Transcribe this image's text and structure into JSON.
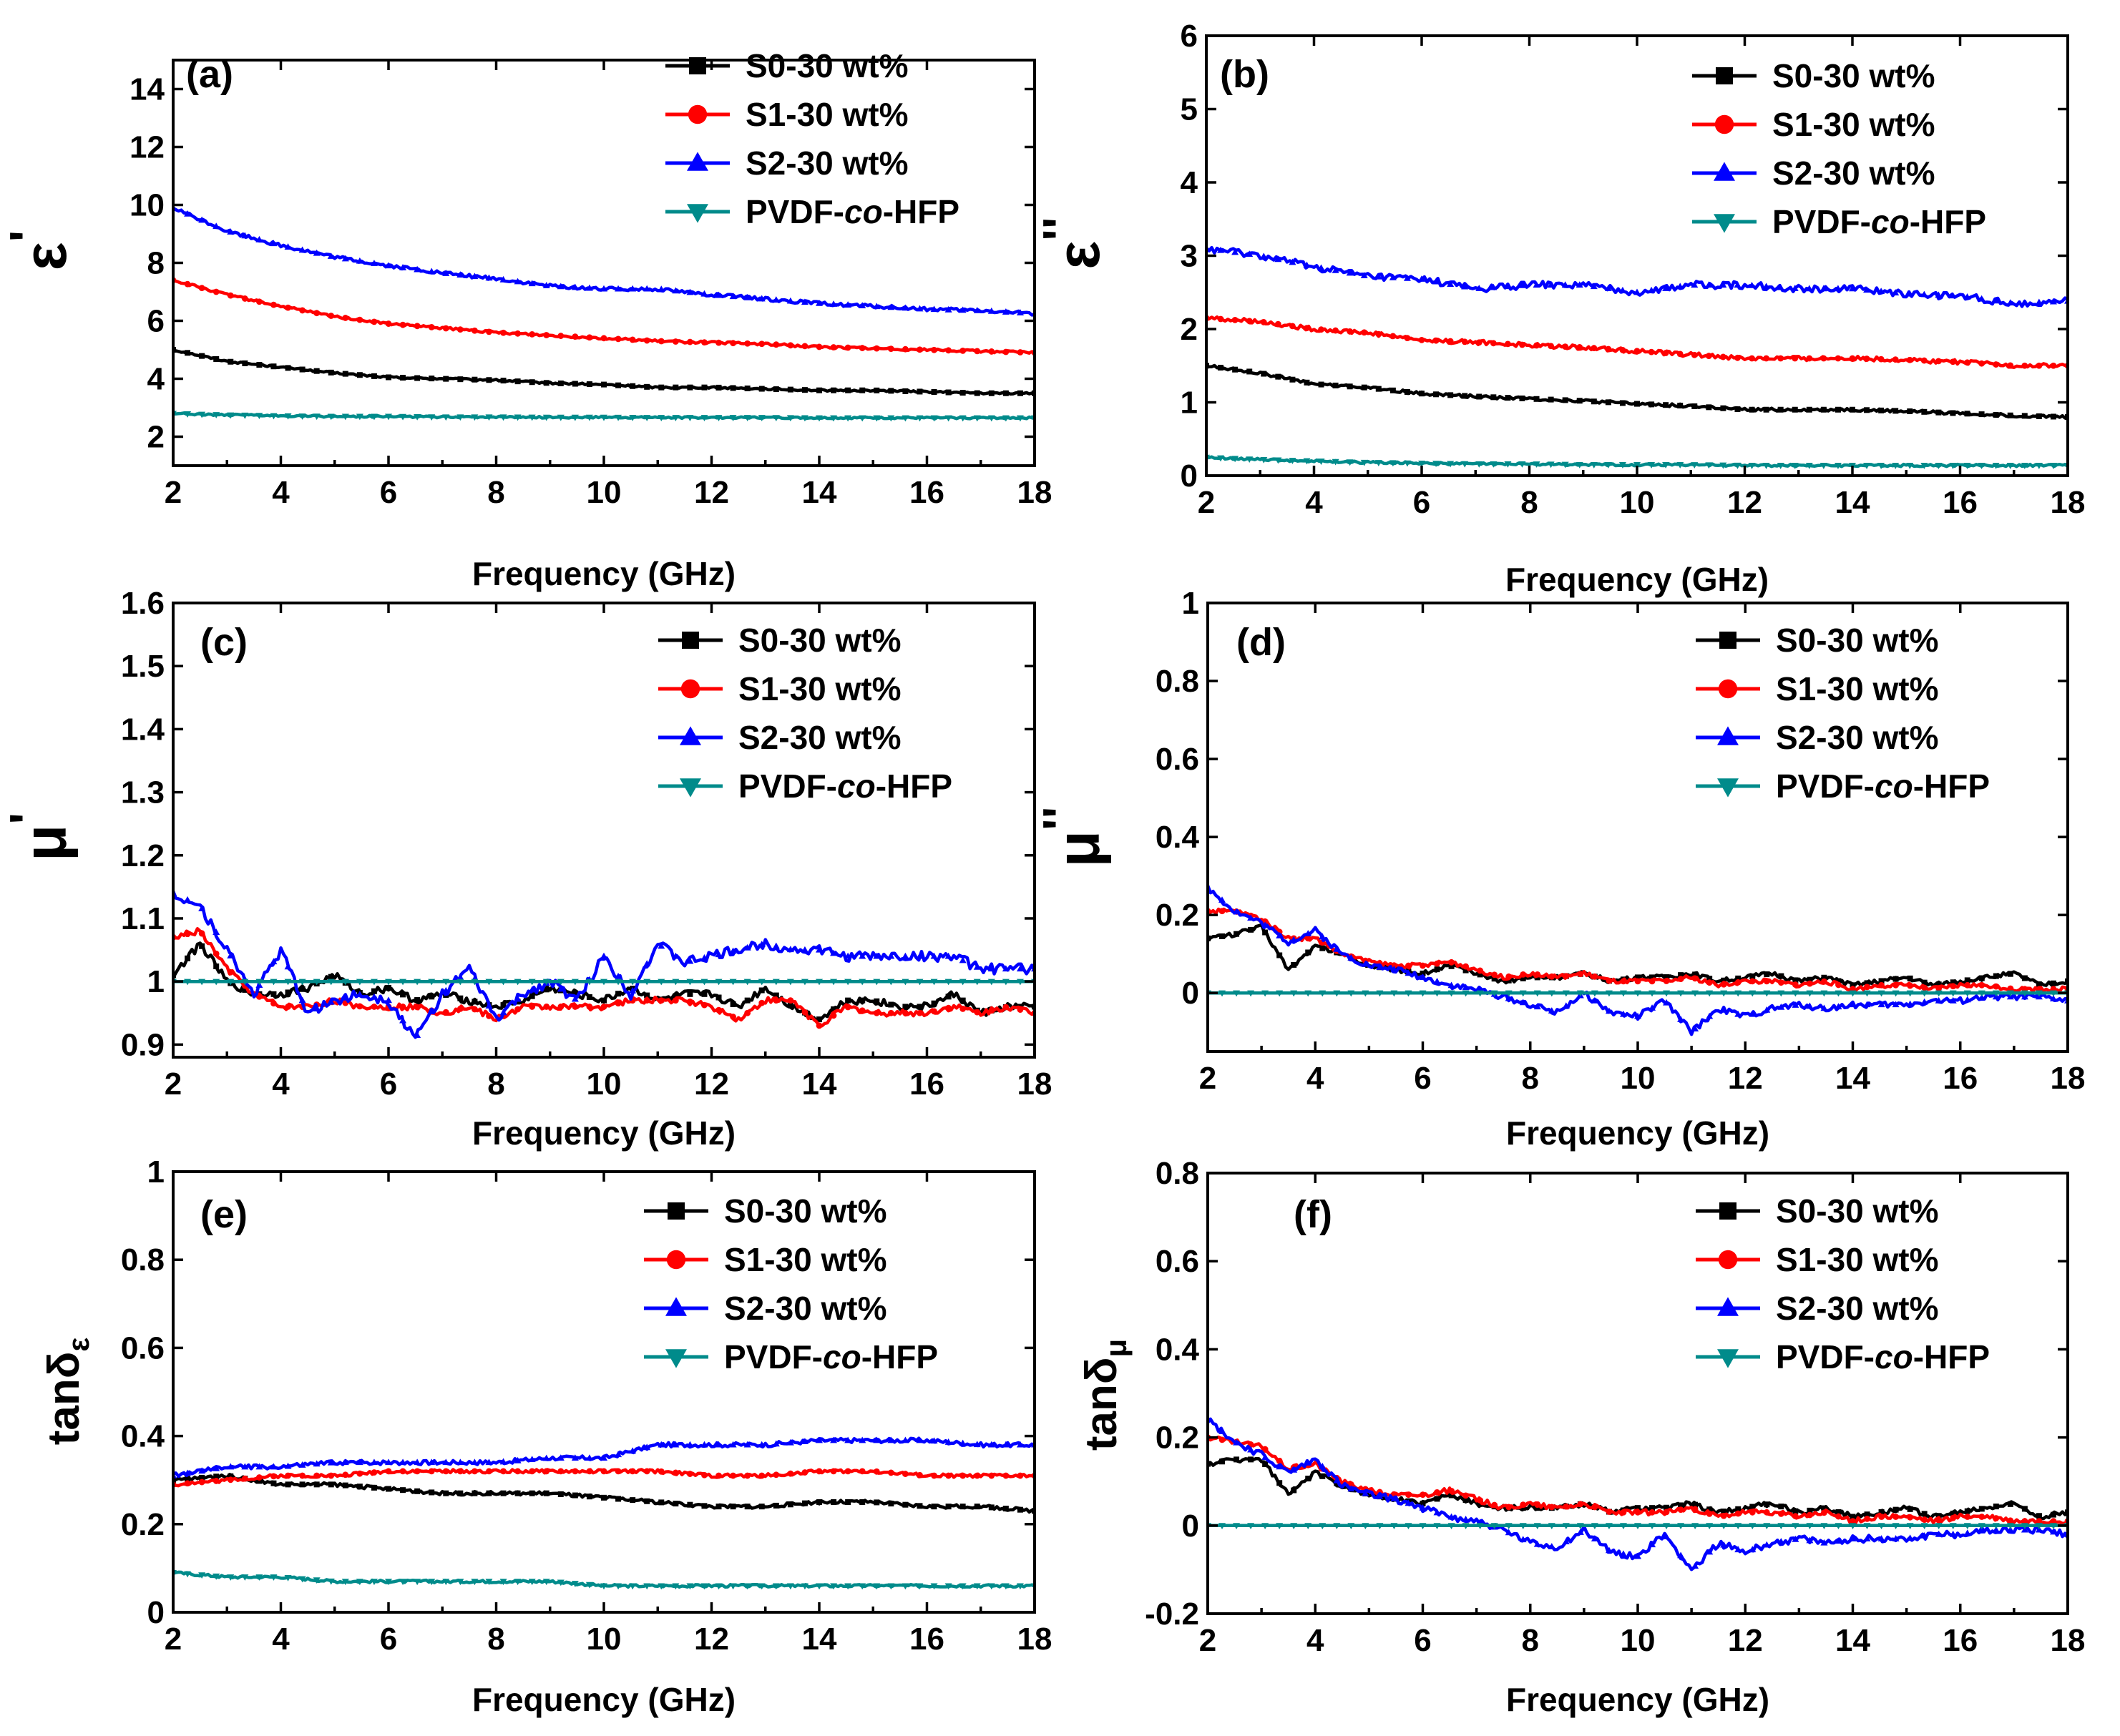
{
  "colors": {
    "S0": "#000000",
    "S1": "#ff0000",
    "S2": "#0000ff",
    "PVDF": "#008b8b"
  },
  "x_axis_title": "Frequency (GHz)",
  "legend_labels": {
    "S0": "S0-30 wt%",
    "S1": "S1-30 wt%",
    "S2": "S2-30 wt%",
    "PVDF_prefix": "PVDF-",
    "PVDF_italic": "co",
    "PVDF_suffix": "-HFP"
  },
  "chart_data": [
    {
      "type": "line",
      "panel": "(a)",
      "ylabel_symbol": "ε",
      "ylabel_prime": "'",
      "xlabel": "Frequency (GHz)",
      "xlim": [
        2,
        18
      ],
      "ylim": [
        1,
        15
      ],
      "xticks": [
        2,
        4,
        6,
        8,
        10,
        12,
        14,
        16,
        18
      ],
      "yticks": [
        2,
        4,
        6,
        8,
        10,
        12,
        14
      ],
      "x": [
        2,
        3,
        4,
        5,
        6,
        7,
        8,
        9,
        10,
        11,
        12,
        13,
        14,
        15,
        16,
        17,
        18
      ],
      "series": [
        {
          "name": "S0-30 wt%",
          "key": "S0",
          "values": [
            5.0,
            4.6,
            4.4,
            4.2,
            4.05,
            4.0,
            3.95,
            3.85,
            3.8,
            3.7,
            3.7,
            3.65,
            3.6,
            3.6,
            3.55,
            3.5,
            3.5
          ],
          "noise": 0.03
        },
        {
          "name": "S1-30 wt%",
          "key": "S1",
          "values": [
            7.4,
            6.9,
            6.5,
            6.15,
            5.9,
            5.75,
            5.6,
            5.5,
            5.4,
            5.3,
            5.25,
            5.2,
            5.1,
            5.05,
            5.0,
            4.95,
            4.9
          ],
          "noise": 0.04
        },
        {
          "name": "S2-30 wt%",
          "key": "S2",
          "values": [
            9.9,
            9.1,
            8.6,
            8.2,
            7.9,
            7.65,
            7.45,
            7.2,
            7.1,
            7.1,
            6.9,
            6.75,
            6.6,
            6.5,
            6.4,
            6.35,
            6.25
          ],
          "noise": 0.06
        },
        {
          "name": "PVDF-co-HFP",
          "key": "PVDF",
          "values": [
            2.8,
            2.75,
            2.72,
            2.7,
            2.7,
            2.68,
            2.68,
            2.67,
            2.67,
            2.66,
            2.66,
            2.66,
            2.65,
            2.65,
            2.65,
            2.65,
            2.65
          ],
          "noise": 0.03
        }
      ]
    },
    {
      "type": "line",
      "panel": "(b)",
      "ylabel_symbol": "ε",
      "ylabel_prime": "''",
      "xlabel": "Frequency (GHz)",
      "xlim": [
        2,
        18
      ],
      "ylim": [
        0,
        6
      ],
      "xticks": [
        2,
        4,
        6,
        8,
        10,
        12,
        14,
        16,
        18
      ],
      "yticks": [
        0,
        1,
        2,
        3,
        4,
        5,
        6
      ],
      "x": [
        2,
        3,
        4,
        5,
        6,
        7,
        8,
        9,
        10,
        11,
        12,
        13,
        14,
        15,
        16,
        17,
        18
      ],
      "series": [
        {
          "name": "S0-30 wt%",
          "key": "S0",
          "values": [
            1.5,
            1.4,
            1.25,
            1.2,
            1.12,
            1.08,
            1.05,
            1.02,
            0.98,
            0.95,
            0.9,
            0.9,
            0.9,
            0.88,
            0.85,
            0.82,
            0.8
          ],
          "noise": 0.02
        },
        {
          "name": "S1-30 wt%",
          "key": "S1",
          "values": [
            2.15,
            2.1,
            2.0,
            1.95,
            1.85,
            1.82,
            1.78,
            1.75,
            1.7,
            1.65,
            1.6,
            1.6,
            1.6,
            1.58,
            1.55,
            1.5,
            1.5
          ],
          "noise": 0.03
        },
        {
          "name": "S2-30 wt%",
          "key": "S2",
          "values": [
            3.1,
            3.0,
            2.85,
            2.72,
            2.68,
            2.55,
            2.6,
            2.6,
            2.5,
            2.6,
            2.6,
            2.55,
            2.55,
            2.48,
            2.45,
            2.35,
            2.38
          ],
          "noise": 0.05
        },
        {
          "name": "PVDF-co-HFP",
          "key": "PVDF",
          "values": [
            0.25,
            0.22,
            0.2,
            0.18,
            0.17,
            0.16,
            0.16,
            0.15,
            0.15,
            0.15,
            0.14,
            0.14,
            0.14,
            0.14,
            0.14,
            0.14,
            0.14
          ],
          "noise": 0.015
        }
      ]
    },
    {
      "type": "line",
      "panel": "(c)",
      "ylabel_symbol": "μ",
      "ylabel_prime": "'",
      "xlabel": "Frequency (GHz)",
      "xlim": [
        2,
        18
      ],
      "ylim": [
        0.88,
        1.6
      ],
      "xticks": [
        2,
        4,
        6,
        8,
        10,
        12,
        14,
        16,
        18
      ],
      "yticks": [
        0.9,
        1.0,
        1.1,
        1.2,
        1.3,
        1.4,
        1.5,
        1.6
      ],
      "x": [
        2,
        2.5,
        3,
        3.5,
        4,
        4.5,
        5,
        5.5,
        6,
        6.5,
        7,
        7.5,
        8,
        8.5,
        9,
        9.5,
        10,
        10.5,
        11,
        11.5,
        12,
        12.5,
        13,
        13.5,
        14,
        14.5,
        15,
        15.5,
        16,
        16.5,
        17,
        17.5,
        18
      ],
      "series": [
        {
          "name": "S0-30 wt%",
          "key": "S0",
          "values": [
            1.01,
            1.06,
            1.0,
            0.98,
            0.98,
            0.99,
            1.01,
            0.98,
            0.99,
            0.97,
            0.98,
            0.97,
            0.96,
            0.97,
            0.99,
            0.98,
            0.97,
            0.99,
            0.97,
            0.98,
            0.98,
            0.96,
            0.99,
            0.96,
            0.94,
            0.97,
            0.97,
            0.96,
            0.96,
            0.98,
            0.95,
            0.96,
            0.96
          ],
          "noise": 0.006
        },
        {
          "name": "S1-30 wt%",
          "key": "S1",
          "values": [
            1.07,
            1.08,
            1.02,
            0.98,
            0.96,
            0.96,
            0.97,
            0.96,
            0.96,
            0.96,
            0.95,
            0.96,
            0.94,
            0.96,
            0.96,
            0.96,
            0.96,
            0.97,
            0.97,
            0.97,
            0.96,
            0.94,
            0.97,
            0.97,
            0.93,
            0.96,
            0.95,
            0.95,
            0.95,
            0.96,
            0.95,
            0.96,
            0.95
          ],
          "noise": 0.005
        },
        {
          "name": "S2-30 wt%",
          "key": "S2",
          "values": [
            1.14,
            1.12,
            1.05,
            0.98,
            1.05,
            0.95,
            0.97,
            0.98,
            0.97,
            0.91,
            0.98,
            1.02,
            0.94,
            0.98,
            1.0,
            0.97,
            1.04,
            0.98,
            1.06,
            1.03,
            1.04,
            1.05,
            1.06,
            1.05,
            1.05,
            1.04,
            1.04,
            1.04,
            1.04,
            1.04,
            1.02,
            1.02,
            1.02
          ],
          "noise": 0.008
        },
        {
          "name": "PVDF-co-HFP",
          "key": "PVDF",
          "values": [
            1.0,
            1.0,
            1.0,
            1.0,
            1.0,
            1.0,
            1.0,
            1.0,
            1.0,
            1.0,
            1.0,
            1.0,
            1.0,
            1.0,
            1.0,
            1.0,
            1.0,
            1.0,
            1.0,
            1.0,
            1.0,
            1.0,
            1.0,
            1.0,
            1.0,
            1.0,
            1.0,
            1.0,
            1.0,
            1.0,
            1.0,
            1.0,
            1.0
          ],
          "noise": 0.0
        }
      ]
    },
    {
      "type": "line",
      "panel": "(d)",
      "ylabel_symbol": "μ",
      "ylabel_prime": "''",
      "xlabel": "Frequency (GHz)",
      "xlim": [
        2,
        18
      ],
      "ylim": [
        -0.15,
        1.0
      ],
      "xticks": [
        2,
        4,
        6,
        8,
        10,
        12,
        14,
        16,
        18
      ],
      "yticks": [
        0.0,
        0.2,
        0.4,
        0.6,
        0.8,
        1.0
      ],
      "x": [
        2,
        2.5,
        3,
        3.5,
        4,
        4.5,
        5,
        5.5,
        6,
        6.5,
        7,
        7.5,
        8,
        8.5,
        9,
        9.5,
        10,
        10.5,
        11,
        11.5,
        12,
        12.5,
        13,
        13.5,
        14,
        14.5,
        15,
        15.5,
        16,
        16.5,
        17,
        17.5,
        18
      ],
      "series": [
        {
          "name": "S0-30 wt%",
          "key": "S0",
          "values": [
            0.14,
            0.15,
            0.17,
            0.06,
            0.12,
            0.1,
            0.07,
            0.06,
            0.05,
            0.07,
            0.05,
            0.03,
            0.04,
            0.04,
            0.05,
            0.03,
            0.04,
            0.04,
            0.05,
            0.03,
            0.04,
            0.05,
            0.03,
            0.04,
            0.02,
            0.03,
            0.04,
            0.02,
            0.03,
            0.04,
            0.05,
            0.02,
            0.03
          ],
          "noise": 0.006
        },
        {
          "name": "S1-30 wt%",
          "key": "S1",
          "values": [
            0.21,
            0.21,
            0.19,
            0.14,
            0.14,
            0.1,
            0.08,
            0.07,
            0.07,
            0.08,
            0.06,
            0.04,
            0.05,
            0.04,
            0.05,
            0.03,
            0.03,
            0.03,
            0.04,
            0.02,
            0.03,
            0.03,
            0.02,
            0.03,
            0.01,
            0.02,
            0.02,
            0.01,
            0.02,
            0.02,
            0.01,
            0.01,
            0.01
          ],
          "noise": 0.006
        },
        {
          "name": "S2-30 wt%",
          "key": "S2",
          "values": [
            0.27,
            0.21,
            0.18,
            0.13,
            0.16,
            0.1,
            0.07,
            0.06,
            0.04,
            0.02,
            0.01,
            -0.01,
            -0.03,
            -0.05,
            0.0,
            -0.05,
            -0.06,
            -0.02,
            -0.1,
            -0.04,
            -0.06,
            -0.04,
            -0.03,
            -0.04,
            -0.03,
            -0.03,
            -0.03,
            -0.02,
            -0.02,
            -0.01,
            -0.01,
            -0.01,
            -0.02
          ],
          "noise": 0.008
        },
        {
          "name": "PVDF-co-HFP",
          "key": "PVDF",
          "values": [
            0.0,
            0.0,
            0.0,
            0.0,
            0.0,
            0.0,
            0.0,
            0.0,
            0.0,
            0.0,
            0.0,
            0.0,
            0.0,
            0.0,
            0.0,
            0.0,
            0.0,
            0.0,
            0.0,
            0.0,
            0.0,
            0.0,
            0.0,
            0.0,
            0.0,
            0.0,
            0.0,
            0.0,
            0.0,
            0.0,
            0.0,
            0.0,
            0.0
          ],
          "noise": 0.0
        }
      ]
    },
    {
      "type": "line",
      "panel": "(e)",
      "ylabel_main": "tanδ",
      "ylabel_sub": "ε",
      "xlabel": "Frequency (GHz)",
      "xlim": [
        2,
        18
      ],
      "ylim": [
        0.0,
        1.0
      ],
      "xticks": [
        2,
        4,
        6,
        8,
        10,
        12,
        14,
        16,
        18
      ],
      "yticks": [
        0.0,
        0.2,
        0.4,
        0.6,
        0.8,
        1.0
      ],
      "x": [
        2,
        3,
        4,
        5,
        6,
        7,
        8,
        9,
        10,
        11,
        12,
        13,
        14,
        15,
        16,
        17,
        18
      ],
      "series": [
        {
          "name": "S0-30 wt%",
          "key": "S0",
          "values": [
            0.3,
            0.31,
            0.29,
            0.29,
            0.28,
            0.27,
            0.27,
            0.27,
            0.26,
            0.25,
            0.24,
            0.24,
            0.25,
            0.25,
            0.24,
            0.24,
            0.23
          ],
          "noise": 0.004
        },
        {
          "name": "S1-30 wt%",
          "key": "S1",
          "values": [
            0.29,
            0.3,
            0.31,
            0.31,
            0.32,
            0.32,
            0.32,
            0.32,
            0.32,
            0.32,
            0.31,
            0.31,
            0.32,
            0.32,
            0.31,
            0.31,
            0.31
          ],
          "noise": 0.004
        },
        {
          "name": "S2-30 wt%",
          "key": "S2",
          "values": [
            0.31,
            0.33,
            0.33,
            0.34,
            0.34,
            0.34,
            0.34,
            0.35,
            0.35,
            0.38,
            0.38,
            0.38,
            0.39,
            0.39,
            0.39,
            0.38,
            0.38
          ],
          "noise": 0.005
        },
        {
          "name": "PVDF-co-HFP",
          "key": "PVDF",
          "values": [
            0.09,
            0.08,
            0.08,
            0.07,
            0.07,
            0.07,
            0.07,
            0.07,
            0.06,
            0.06,
            0.06,
            0.06,
            0.06,
            0.06,
            0.06,
            0.06,
            0.06
          ],
          "noise": 0.003
        }
      ]
    },
    {
      "type": "line",
      "panel": "(f)",
      "ylabel_main": "tanδ",
      "ylabel_sub": "μ",
      "xlabel": "Frequency (GHz)",
      "xlim": [
        2,
        18
      ],
      "ylim": [
        -0.2,
        0.8
      ],
      "xticks": [
        2,
        4,
        6,
        8,
        10,
        12,
        14,
        16,
        18
      ],
      "yticks": [
        -0.2,
        0.0,
        0.2,
        0.4,
        0.6,
        0.8
      ],
      "x": [
        2,
        2.5,
        3,
        3.5,
        4,
        4.5,
        5,
        5.5,
        6,
        6.5,
        7,
        7.5,
        8,
        8.5,
        9,
        9.5,
        10,
        10.5,
        11,
        11.5,
        12,
        12.5,
        13,
        13.5,
        14,
        14.5,
        15,
        15.5,
        16,
        16.5,
        17,
        17.5,
        18
      ],
      "series": [
        {
          "name": "S0-30 wt%",
          "key": "S0",
          "values": [
            0.14,
            0.15,
            0.15,
            0.07,
            0.12,
            0.09,
            0.07,
            0.06,
            0.05,
            0.07,
            0.05,
            0.04,
            0.04,
            0.04,
            0.05,
            0.03,
            0.04,
            0.04,
            0.05,
            0.03,
            0.04,
            0.05,
            0.03,
            0.04,
            0.02,
            0.03,
            0.04,
            0.02,
            0.03,
            0.04,
            0.05,
            0.02,
            0.03
          ],
          "noise": 0.006
        },
        {
          "name": "S1-30 wt%",
          "key": "S1",
          "values": [
            0.2,
            0.19,
            0.18,
            0.13,
            0.14,
            0.1,
            0.08,
            0.07,
            0.07,
            0.08,
            0.06,
            0.04,
            0.05,
            0.04,
            0.05,
            0.03,
            0.03,
            0.03,
            0.04,
            0.02,
            0.03,
            0.03,
            0.02,
            0.03,
            0.01,
            0.02,
            0.02,
            0.01,
            0.02,
            0.02,
            0.01,
            0.01,
            0.01
          ],
          "noise": 0.006
        },
        {
          "name": "S2-30 wt%",
          "key": "S2",
          "values": [
            0.24,
            0.19,
            0.16,
            0.12,
            0.15,
            0.09,
            0.07,
            0.06,
            0.04,
            0.02,
            0.01,
            -0.01,
            -0.04,
            -0.05,
            -0.01,
            -0.06,
            -0.07,
            -0.02,
            -0.1,
            -0.04,
            -0.06,
            -0.04,
            -0.03,
            -0.04,
            -0.03,
            -0.03,
            -0.03,
            -0.02,
            -0.02,
            -0.01,
            -0.01,
            -0.01,
            -0.02
          ],
          "noise": 0.008
        },
        {
          "name": "PVDF-co-HFP",
          "key": "PVDF",
          "values": [
            0.0,
            0.0,
            0.0,
            0.0,
            0.0,
            0.0,
            0.0,
            0.0,
            0.0,
            0.0,
            0.0,
            0.0,
            0.0,
            0.0,
            0.0,
            0.0,
            0.0,
            0.0,
            0.0,
            0.0,
            0.0,
            0.0,
            0.0,
            0.0,
            0.0,
            0.0,
            0.0,
            0.0,
            0.0,
            0.0,
            0.0,
            0.0,
            0.0
          ],
          "noise": 0.0
        }
      ]
    }
  ]
}
